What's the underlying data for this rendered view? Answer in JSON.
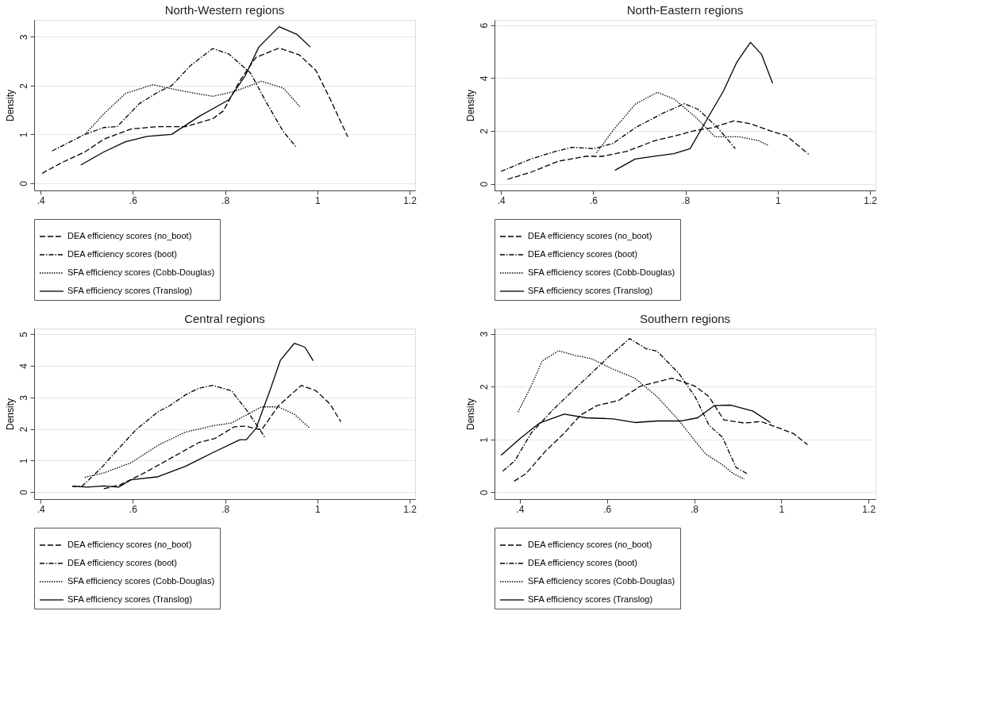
{
  "chart_data": [
    {
      "type": "line",
      "title": "North-Western regions",
      "ylabel": "Density",
      "grid": "y",
      "legend": "bottom",
      "xlim": [
        0.386,
        1.212
      ],
      "ylim": [
        -0.15,
        3.35
      ],
      "xticks": [
        {
          "value": 0.4,
          "label": ".4"
        },
        {
          "value": 0.6,
          "label": ".6"
        },
        {
          "value": 0.8,
          "label": ".8"
        },
        1,
        1.2
      ],
      "yticks": [
        0,
        1,
        2,
        3
      ],
      "series": [
        {
          "name": "DEA efficiency scores (no_boot)",
          "color": "#000000",
          "line_style": "dashed",
          "x": [
            0.403,
            0.448,
            0.496,
            0.537,
            0.596,
            0.655,
            0.714,
            0.773,
            0.796,
            0.832,
            0.867,
            0.917,
            0.961,
            0.997,
            1.027,
            1.066
          ],
          "values": [
            0.2,
            0.43,
            0.64,
            0.9,
            1.11,
            1.16,
            1.16,
            1.32,
            1.48,
            2.1,
            2.58,
            2.77,
            2.63,
            2.31,
            1.74,
            0.95
          ]
        },
        {
          "name": "DEA efficiency scores (boot)",
          "color": "#000000",
          "line_style": "dashdot",
          "x": [
            0.425,
            0.496,
            0.537,
            0.566,
            0.614,
            0.655,
            0.684,
            0.726,
            0.773,
            0.808,
            0.855,
            0.891,
            0.926,
            0.955
          ],
          "values": [
            0.66,
            1.0,
            1.14,
            1.16,
            1.63,
            1.87,
            2.0,
            2.42,
            2.76,
            2.65,
            2.26,
            1.63,
            1.06,
            0.73
          ]
        },
        {
          "name": "SFA efficiency scores (Cobb-Douglas)",
          "color": "#000000",
          "line_style": "dotted",
          "x": [
            0.496,
            0.537,
            0.584,
            0.643,
            0.702,
            0.773,
            0.82,
            0.879,
            0.926,
            0.962
          ],
          "values": [
            1.0,
            1.42,
            1.84,
            2.02,
            1.9,
            1.78,
            1.88,
            2.09,
            1.95,
            1.57
          ]
        },
        {
          "name": "SFA efficiency scores (Translog)",
          "color": "#000000",
          "line_style": "solid",
          "x": [
            0.487,
            0.537,
            0.584,
            0.631,
            0.684,
            0.744,
            0.808,
            0.844,
            0.873,
            0.917,
            0.956,
            0.985
          ],
          "values": [
            0.37,
            0.64,
            0.85,
            0.96,
            1.0,
            1.37,
            1.71,
            2.21,
            2.79,
            3.21,
            3.05,
            2.79
          ]
        }
      ]
    },
    {
      "type": "line",
      "title": "North-Eastern regions",
      "ylabel": "Density",
      "grid": "y",
      "legend": "bottom",
      "xlim": [
        0.386,
        1.212
      ],
      "ylim": [
        -0.25,
        6.2
      ],
      "xticks": [
        {
          "value": 0.4,
          "label": ".4"
        },
        {
          "value": 0.6,
          "label": ".6"
        },
        {
          "value": 0.8,
          "label": ".8"
        },
        1,
        1.2
      ],
      "yticks": [
        0,
        2,
        4,
        6
      ],
      "series": [
        {
          "name": "DEA efficiency scores (no_boot)",
          "color": "#000000",
          "line_style": "dashed",
          "x": [
            0.414,
            0.465,
            0.525,
            0.584,
            0.62,
            0.673,
            0.733,
            0.781,
            0.822,
            0.858,
            0.905,
            0.941,
            0.989,
            1.018,
            1.067
          ],
          "values": [
            0.17,
            0.44,
            0.86,
            1.04,
            1.04,
            1.23,
            1.63,
            1.83,
            2.02,
            2.12,
            2.38,
            2.27,
            1.97,
            1.83,
            1.12
          ]
        },
        {
          "name": "DEA efficiency scores (boot)",
          "color": "#000000",
          "line_style": "dashdot",
          "x": [
            0.4,
            0.465,
            0.519,
            0.554,
            0.602,
            0.643,
            0.691,
            0.751,
            0.798,
            0.828,
            0.87,
            0.908
          ],
          "values": [
            0.47,
            0.94,
            1.23,
            1.38,
            1.33,
            1.53,
            2.12,
            2.67,
            3.03,
            2.81,
            2.12,
            1.33
          ]
        },
        {
          "name": "SFA efficiency scores (Cobb-Douglas)",
          "color": "#000000",
          "line_style": "dotted",
          "x": [
            0.607,
            0.643,
            0.691,
            0.739,
            0.775,
            0.822,
            0.864,
            0.917,
            0.959,
            0.98
          ],
          "values": [
            1.17,
            2.02,
            3.01,
            3.46,
            3.21,
            2.52,
            1.78,
            1.78,
            1.63,
            1.45
          ]
        },
        {
          "name": "SFA efficiency scores (Translog)",
          "color": "#000000",
          "line_style": "solid",
          "x": [
            0.647,
            0.691,
            0.739,
            0.775,
            0.81,
            0.846,
            0.882,
            0.911,
            0.941,
            0.965,
            0.989
          ],
          "values": [
            0.51,
            0.94,
            1.06,
            1.14,
            1.33,
            2.42,
            3.5,
            4.59,
            5.35,
            4.89,
            3.8
          ]
        }
      ]
    },
    {
      "type": "line",
      "title": "Central regions",
      "ylabel": "Density",
      "grid": "y",
      "legend": "bottom",
      "xlim": [
        0.386,
        1.212
      ],
      "ylim": [
        -0.22,
        5.18
      ],
      "xticks": [
        {
          "value": 0.4,
          "label": ".4"
        },
        {
          "value": 0.6,
          "label": ".6"
        },
        {
          "value": 0.8,
          "label": ".8"
        },
        1,
        1.2
      ],
      "yticks": [
        0,
        1,
        2,
        3,
        4,
        5
      ],
      "series": [
        {
          "name": "DEA efficiency scores (no_boot)",
          "color": "#000000",
          "line_style": "dashed",
          "x": [
            0.537,
            0.572,
            0.625,
            0.684,
            0.743,
            0.778,
            0.82,
            0.844,
            0.879,
            0.915,
            0.965,
            0.997,
            1.027,
            1.051
          ],
          "values": [
            0.11,
            0.23,
            0.61,
            1.09,
            1.57,
            1.7,
            2.07,
            2.09,
            1.97,
            2.72,
            3.38,
            3.21,
            2.8,
            2.23
          ]
        },
        {
          "name": "DEA efficiency scores (boot)",
          "color": "#000000",
          "line_style": "dashdot",
          "x": [
            0.469,
            0.49,
            0.531,
            0.566,
            0.607,
            0.655,
            0.678,
            0.714,
            0.743,
            0.773,
            0.814,
            0.849,
            0.886
          ],
          "values": [
            0.18,
            0.19,
            0.76,
            1.33,
            1.98,
            2.55,
            2.72,
            3.08,
            3.29,
            3.38,
            3.21,
            2.55,
            1.74
          ]
        },
        {
          "name": "SFA efficiency scores (Cobb-Douglas)",
          "color": "#000000",
          "line_style": "dotted",
          "x": [
            0.496,
            0.537,
            0.596,
            0.655,
            0.714,
            0.773,
            0.814,
            0.844,
            0.879,
            0.915,
            0.95,
            0.984
          ],
          "values": [
            0.47,
            0.61,
            0.93,
            1.49,
            1.9,
            2.1,
            2.19,
            2.43,
            2.7,
            2.7,
            2.47,
            2.02
          ]
        },
        {
          "name": "SFA efficiency scores (Translog)",
          "color": "#000000",
          "line_style": "solid",
          "x": [
            0.469,
            0.501,
            0.537,
            0.569,
            0.596,
            0.655,
            0.714,
            0.773,
            0.832,
            0.846,
            0.867,
            0.897,
            0.92,
            0.95,
            0.973,
            0.991
          ],
          "values": [
            0.19,
            0.16,
            0.2,
            0.16,
            0.39,
            0.49,
            0.82,
            1.25,
            1.66,
            1.66,
            2.02,
            3.21,
            4.18,
            4.71,
            4.59,
            4.16
          ]
        }
      ]
    },
    {
      "type": "line",
      "title": "Southern regions",
      "ylabel": "Density",
      "grid": "y",
      "legend": "bottom",
      "xlim": [
        0.342,
        1.216
      ],
      "ylim": [
        -0.13,
        3.1
      ],
      "xticks": [
        {
          "value": 0.4,
          "label": ".4"
        },
        {
          "value": 0.6,
          "label": ".6"
        },
        {
          "value": 0.8,
          "label": ".8"
        },
        1,
        1.2
      ],
      "yticks": [
        0,
        1,
        2,
        3
      ],
      "series": [
        {
          "name": "DEA efficiency scores (no_boot)",
          "color": "#000000",
          "line_style": "dashed",
          "x": [
            0.387,
            0.414,
            0.458,
            0.502,
            0.539,
            0.577,
            0.627,
            0.677,
            0.749,
            0.802,
            0.834,
            0.868,
            0.915,
            0.953,
            1.003,
            1.028,
            1.06
          ],
          "values": [
            0.21,
            0.35,
            0.77,
            1.12,
            1.46,
            1.64,
            1.74,
            2.01,
            2.16,
            2.01,
            1.81,
            1.37,
            1.31,
            1.34,
            1.19,
            1.11,
            0.9
          ]
        },
        {
          "name": "DEA efficiency scores (boot)",
          "color": "#000000",
          "line_style": "dashdot",
          "x": [
            0.361,
            0.389,
            0.426,
            0.476,
            0.52,
            0.564,
            0.602,
            0.652,
            0.689,
            0.715,
            0.765,
            0.802,
            0.834,
            0.865,
            0.896,
            0.924
          ],
          "values": [
            0.4,
            0.6,
            1.12,
            1.56,
            1.91,
            2.25,
            2.55,
            2.91,
            2.72,
            2.67,
            2.25,
            1.81,
            1.27,
            1.04,
            0.47,
            0.34
          ]
        },
        {
          "name": "SFA efficiency scores (Cobb-Douglas)",
          "color": "#000000",
          "line_style": "dotted",
          "x": [
            0.396,
            0.426,
            0.451,
            0.489,
            0.527,
            0.564,
            0.614,
            0.664,
            0.715,
            0.765,
            0.802,
            0.827,
            0.865,
            0.89,
            0.915
          ],
          "values": [
            1.52,
            2.01,
            2.48,
            2.68,
            2.59,
            2.53,
            2.33,
            2.16,
            1.81,
            1.36,
            0.97,
            0.72,
            0.52,
            0.35,
            0.25
          ]
        },
        {
          "name": "SFA efficiency scores (Translog)",
          "color": "#000000",
          "line_style": "solid",
          "x": [
            0.357,
            0.401,
            0.445,
            0.502,
            0.552,
            0.614,
            0.664,
            0.715,
            0.771,
            0.808,
            0.846,
            0.884,
            0.934,
            0.975
          ],
          "values": [
            0.7,
            1.02,
            1.31,
            1.48,
            1.41,
            1.39,
            1.32,
            1.35,
            1.35,
            1.41,
            1.64,
            1.65,
            1.54,
            1.32
          ]
        }
      ]
    }
  ]
}
